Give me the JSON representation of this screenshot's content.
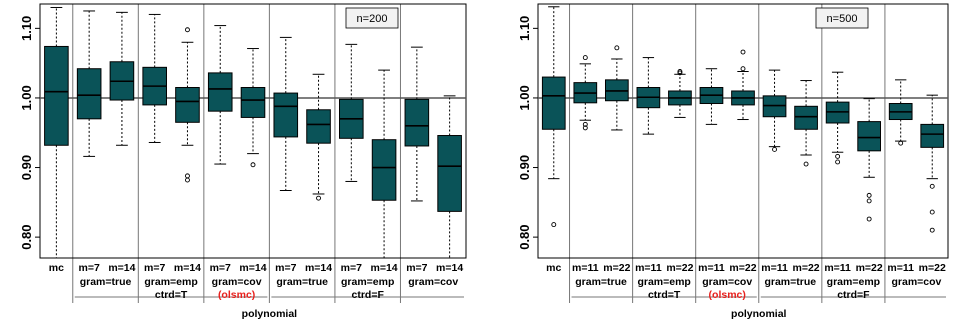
{
  "colors": {
    "box_fill": "#0a5358",
    "box_stroke": "#000000",
    "reference_line": "#555555",
    "separator": "#777777",
    "highlight": "#e8201d"
  },
  "chart_data": [
    {
      "type": "box",
      "annotation": "n=200",
      "ylim": [
        0.77,
        1.135
      ],
      "yticks": [
        "0.80",
        "0.90",
        "1.00",
        "1.10"
      ],
      "reference_value": 1.0,
      "boxes": [
        {
          "param": "mc",
          "setting": "",
          "q1": 0.932,
          "median": 1.009,
          "q3": 1.074,
          "whisker_low": 0.77,
          "whisker_high": 1.13,
          "outliers": []
        },
        {
          "param": "m=7",
          "setting": "gram=true",
          "q1": 0.97,
          "median": 1.004,
          "q3": 1.042,
          "whisker_low": 0.916,
          "whisker_high": 1.125,
          "outliers": []
        },
        {
          "param": "m=14",
          "setting": "gram=true",
          "q1": 0.997,
          "median": 1.024,
          "q3": 1.052,
          "whisker_low": 0.932,
          "whisker_high": 1.123,
          "outliers": []
        },
        {
          "param": "m=7",
          "setting": "gram=emp",
          "q1": 0.99,
          "median": 1.017,
          "q3": 1.044,
          "whisker_low": 0.936,
          "whisker_high": 1.12,
          "outliers": []
        },
        {
          "param": "m=14",
          "setting": "gram=emp",
          "q1": 0.965,
          "median": 0.995,
          "q3": 1.015,
          "whisker_low": 0.932,
          "whisker_high": 1.08,
          "outliers": [
            0.882,
            0.888,
            1.098
          ]
        },
        {
          "param": "m=7",
          "setting": "gram=cov",
          "q1": 0.981,
          "median": 1.013,
          "q3": 1.036,
          "whisker_low": 0.905,
          "whisker_high": 1.104,
          "outliers": []
        },
        {
          "param": "m=14",
          "setting": "gram=cov",
          "q1": 0.972,
          "median": 0.997,
          "q3": 1.015,
          "whisker_low": 0.92,
          "whisker_high": 1.071,
          "outliers": [
            0.904
          ]
        },
        {
          "param": "m=7",
          "setting": "gram=true",
          "q1": 0.944,
          "median": 0.988,
          "q3": 1.007,
          "whisker_low": 0.867,
          "whisker_high": 1.087,
          "outliers": []
        },
        {
          "param": "m=14",
          "setting": "gram=true",
          "q1": 0.935,
          "median": 0.962,
          "q3": 0.983,
          "whisker_low": 0.862,
          "whisker_high": 1.034,
          "outliers": [
            0.856
          ]
        },
        {
          "param": "m=7",
          "setting": "gram=emp",
          "q1": 0.942,
          "median": 0.97,
          "q3": 0.998,
          "whisker_low": 0.88,
          "whisker_high": 1.077,
          "outliers": []
        },
        {
          "param": "m=14",
          "setting": "gram=emp",
          "q1": 0.853,
          "median": 0.9,
          "q3": 0.94,
          "whisker_low": 0.77,
          "whisker_high": 1.04,
          "outliers": []
        },
        {
          "param": "m=7",
          "setting": "gram=cov",
          "q1": 0.931,
          "median": 0.96,
          "q3": 0.998,
          "whisker_low": 0.852,
          "whisker_high": 1.073,
          "outliers": []
        },
        {
          "param": "m=14",
          "setting": "gram=cov",
          "q1": 0.837,
          "median": 0.902,
          "q3": 0.946,
          "whisker_low": 0.77,
          "whisker_high": 1.003,
          "outliers": []
        }
      ]
    },
    {
      "type": "box",
      "annotation": "n=500",
      "ylim": [
        0.77,
        1.135
      ],
      "yticks": [
        "0.80",
        "0.90",
        "1.00",
        "1.10"
      ],
      "reference_value": 1.0,
      "boxes": [
        {
          "param": "mc",
          "setting": "",
          "q1": 0.955,
          "median": 1.003,
          "q3": 1.03,
          "whisker_low": 0.884,
          "whisker_high": 1.131,
          "outliers": [
            0.818
          ]
        },
        {
          "param": "m=11",
          "setting": "gram=true",
          "q1": 0.993,
          "median": 1.007,
          "q3": 1.022,
          "whisker_low": 0.968,
          "whisker_high": 1.049,
          "outliers": [
            0.957,
            0.962,
            1.058
          ]
        },
        {
          "param": "m=22",
          "setting": "gram=true",
          "q1": 0.996,
          "median": 1.01,
          "q3": 1.026,
          "whisker_low": 0.954,
          "whisker_high": 1.056,
          "outliers": [
            1.072
          ]
        },
        {
          "param": "m=11",
          "setting": "gram=emp",
          "q1": 0.986,
          "median": 1.001,
          "q3": 1.015,
          "whisker_low": 0.948,
          "whisker_high": 1.058,
          "outliers": []
        },
        {
          "param": "m=22",
          "setting": "gram=emp",
          "q1": 0.99,
          "median": 1.0,
          "q3": 1.01,
          "whisker_low": 0.972,
          "whisker_high": 1.034,
          "outliers": [
            1.036,
            1.038
          ]
        },
        {
          "param": "m=11",
          "setting": "gram=cov",
          "q1": 0.992,
          "median": 1.004,
          "q3": 1.015,
          "whisker_low": 0.962,
          "whisker_high": 1.042,
          "outliers": []
        },
        {
          "param": "m=22",
          "setting": "gram=cov",
          "q1": 0.99,
          "median": 1.0,
          "q3": 1.01,
          "whisker_low": 0.969,
          "whisker_high": 1.038,
          "outliers": [
            1.042,
            1.066
          ]
        },
        {
          "param": "m=11",
          "setting": "gram=true",
          "q1": 0.973,
          "median": 0.989,
          "q3": 1.003,
          "whisker_low": 0.93,
          "whisker_high": 1.04,
          "outliers": [
            0.926
          ]
        },
        {
          "param": "m=22",
          "setting": "gram=true",
          "q1": 0.955,
          "median": 0.973,
          "q3": 0.988,
          "whisker_low": 0.918,
          "whisker_high": 1.025,
          "outliers": [
            0.905
          ]
        },
        {
          "param": "m=11",
          "setting": "gram=emp",
          "q1": 0.964,
          "median": 0.98,
          "q3": 0.994,
          "whisker_low": 0.922,
          "whisker_high": 1.037,
          "outliers": [
            0.908,
            0.916
          ]
        },
        {
          "param": "m=22",
          "setting": "gram=emp",
          "q1": 0.924,
          "median": 0.943,
          "q3": 0.966,
          "whisker_low": 0.886,
          "whisker_high": 0.999,
          "outliers": [
            0.826,
            0.852,
            0.86
          ]
        },
        {
          "param": "m=11",
          "setting": "gram=cov",
          "q1": 0.969,
          "median": 0.98,
          "q3": 0.992,
          "whisker_low": 0.938,
          "whisker_high": 1.026,
          "outliers": [
            0.935
          ]
        },
        {
          "param": "m=22",
          "setting": "gram=cov",
          "q1": 0.929,
          "median": 0.948,
          "q3": 0.962,
          "whisker_low": 0.884,
          "whisker_high": 1.004,
          "outliers": [
            0.81,
            0.836,
            0.873
          ]
        }
      ]
    }
  ],
  "group_labels": {
    "ctrd_true": "ctrd=T",
    "ctrd_false": "ctrd=F",
    "olsmc": "(olsmc)",
    "method": "polynomial"
  }
}
